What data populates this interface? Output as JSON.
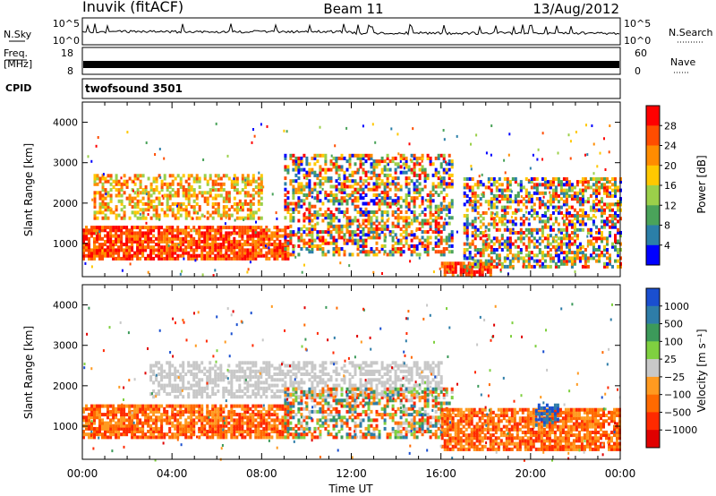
{
  "header": {
    "station": "Inuvik (fitACF)",
    "beam": "Beam 11",
    "date": "13/Aug/2012"
  },
  "status_panels": {
    "nsky_label": "N.Sky",
    "nsearch_label": "N.Search",
    "freq_label_1": "Freq.",
    "freq_label_2": "[MHz]",
    "nave_label": "Nave",
    "cpid_label": "CPID",
    "cpid_value": "twofsound 3501",
    "noise_left_ticks": [
      "10^5",
      "10^0"
    ],
    "noise_right_ticks": [
      "10^5",
      "10^0"
    ],
    "freq_left_ticks": [
      "18",
      "8"
    ],
    "freq_right_ticks": [
      "60",
      "0"
    ]
  },
  "chart_data": [
    {
      "type": "heatmap",
      "name": "power",
      "ylabel": "Slant Range [km]",
      "xlabel": "Time UT",
      "x_ticks": [
        "00:00",
        "04:00",
        "08:00",
        "12:00",
        "16:00",
        "20:00",
        "00:00"
      ],
      "y_ticks": [
        1000,
        2000,
        3000,
        4000
      ],
      "ylim": [
        180,
        4500
      ],
      "colorbar": {
        "label": "Power [dB]",
        "ticks": [
          "28",
          "24",
          "20",
          "16",
          "12",
          "8",
          "4"
        ],
        "colors": [
          "#ff0000",
          "#ff4d00",
          "#ff8c00",
          "#ffc800",
          "#9bd04a",
          "#4aa35a",
          "#2b7fa8",
          "#0000ff"
        ]
      },
      "regions": [
        {
          "t0": 0.0,
          "t1": 9.2,
          "r0": 600,
          "r1": 1400,
          "level": "high"
        },
        {
          "t0": 0.5,
          "t1": 8.0,
          "r0": 1600,
          "r1": 2700,
          "level": "mid"
        },
        {
          "t0": 9.0,
          "t1": 16.5,
          "r0": 700,
          "r1": 3200,
          "level": "mixed"
        },
        {
          "t0": 16.0,
          "t1": 18.2,
          "r0": 200,
          "r1": 500,
          "level": "high"
        },
        {
          "t0": 17.0,
          "t1": 24.0,
          "r0": 400,
          "r1": 2600,
          "level": "mixed"
        }
      ]
    },
    {
      "type": "heatmap",
      "name": "velocity",
      "ylabel": "Slant Range [km]",
      "xlabel": "Time UT",
      "x_ticks": [
        "00:00",
        "04:00",
        "08:00",
        "12:00",
        "16:00",
        "20:00",
        "00:00"
      ],
      "y_ticks": [
        1000,
        2000,
        3000,
        4000
      ],
      "ylim": [
        180,
        4500
      ],
      "colorbar": {
        "label": "Velocity [m s⁻¹]",
        "ticks": [
          "1000",
          "500",
          "100",
          "25",
          "−25",
          "−100",
          "−500",
          "−1000"
        ],
        "colors": [
          "#1a4fd0",
          "#2e7da8",
          "#3c9a5a",
          "#7fd040",
          "#c8c8c8",
          "#ff9a20",
          "#ff6a00",
          "#ff2a00",
          "#e00000"
        ]
      },
      "regions": [
        {
          "t0": 0.0,
          "t1": 9.2,
          "r0": 700,
          "r1": 1500,
          "level": "negative"
        },
        {
          "t0": 3.0,
          "t1": 16.0,
          "r0": 1700,
          "r1": 2600,
          "level": "zero"
        },
        {
          "t0": 9.0,
          "t1": 16.5,
          "r0": 700,
          "r1": 1900,
          "level": "mixed"
        },
        {
          "t0": 16.0,
          "t1": 24.0,
          "r0": 400,
          "r1": 1400,
          "level": "negative"
        },
        {
          "t0": 20.2,
          "t1": 21.2,
          "r0": 1000,
          "r1": 1500,
          "level": "positive"
        }
      ]
    }
  ]
}
